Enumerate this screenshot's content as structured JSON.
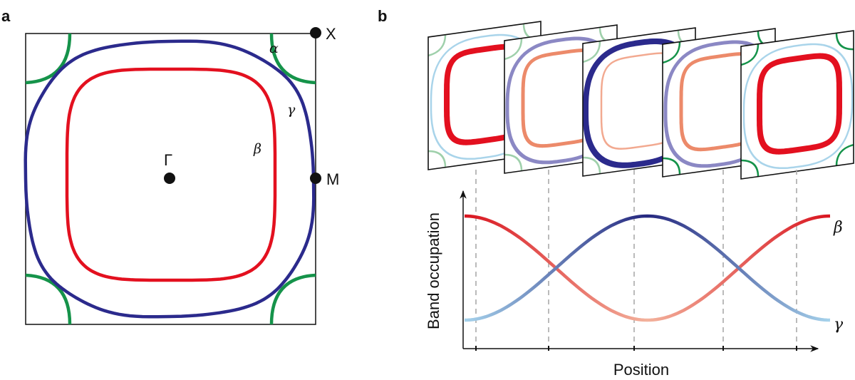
{
  "panel_a": {
    "label": "a",
    "points": {
      "X": "X",
      "M": "M",
      "Gamma": "Γ"
    },
    "bands": {
      "alpha": "α",
      "beta": "β",
      "gamma": "γ"
    },
    "colors": {
      "alpha": "#15934a",
      "beta": "#e3101f",
      "gamma": "#2b2a8c"
    }
  },
  "panel_b": {
    "label": "b",
    "plot": {
      "xlabel": "Position",
      "ylabel": "Band occupation",
      "beta_label": "β",
      "gamma_label": "γ"
    },
    "slices": [
      {
        "gamma_color": "#a9d4ea",
        "beta_color": "#e3101f",
        "alpha_color": "#9fd0ab",
        "gamma_weight": "thin",
        "beta_weight": "thick"
      },
      {
        "gamma_color": "#8b88c4",
        "beta_color": "#ec8a6a",
        "alpha_color": "#9fd0ab",
        "gamma_weight": "medium",
        "beta_weight": "medium"
      },
      {
        "gamma_color": "#2b2a8c",
        "beta_color": "#f2a990",
        "alpha_color": "#9fd0ab",
        "gamma_weight": "thick",
        "beta_weight": "thin"
      },
      {
        "gamma_color": "#8b88c4",
        "beta_color": "#ec8a6a",
        "alpha_color": "#15934a",
        "gamma_weight": "medium",
        "beta_weight": "medium"
      },
      {
        "gamma_color": "#a9d4ea",
        "beta_color": "#e3101f",
        "alpha_color": "#15934a",
        "gamma_weight": "thin",
        "beta_weight": "thick"
      }
    ]
  }
}
